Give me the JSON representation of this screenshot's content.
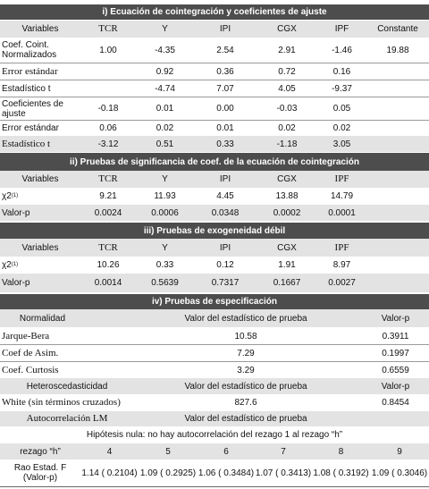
{
  "sec1": {
    "title": "i) Ecuación de cointegración y coeficientes de ajuste",
    "headers": [
      "Variables",
      "TCR",
      "Y",
      "IPI",
      "CGX",
      "IPF",
      "Constante"
    ],
    "rows": [
      {
        "label": "Coef. Coint. Normalizados",
        "vals": [
          "1.00",
          "-4.35",
          "2.54",
          "2.91",
          "-1.46",
          "19.88"
        ]
      },
      {
        "label": "Error estándar",
        "vals": [
          "",
          "0.92",
          "0.36",
          "0.72",
          "0.16",
          ""
        ]
      },
      {
        "label": "Estadístico t",
        "vals": [
          "",
          "-4.74",
          "7.07",
          "4.05",
          "-9.37",
          ""
        ]
      },
      {
        "label": "Coeficientes de ajuste",
        "vals": [
          "-0.18",
          "0.01",
          "0.00",
          "-0.03",
          "0.05",
          ""
        ]
      },
      {
        "label": "Error estándar",
        "vals": [
          "0.06",
          "0.02",
          "0.01",
          "0.02",
          "0.02",
          ""
        ]
      },
      {
        "label": "Estadístico t",
        "vals": [
          "-3.12",
          "0.51",
          "0.33",
          "-1.18",
          "3.05",
          ""
        ]
      }
    ]
  },
  "sec2": {
    "title": "ii) Pruebas de significancia de coef. de la ecuación de cointegración",
    "headers": [
      "Variables",
      "TCR",
      "Y",
      "IPI",
      "CGX",
      "IPF"
    ],
    "chi_label": "χ2",
    "chi_sub": "(1)",
    "chi_vals": [
      "9.21",
      "11.93",
      "4.45",
      "13.88",
      "14.79"
    ],
    "p_label": "Valor-p",
    "p_vals": [
      "0.0024",
      "0.0006",
      "0.0348",
      "0.0002",
      "0.0001"
    ]
  },
  "sec3": {
    "title": "iii) Pruebas de exogeneidad débil",
    "headers": [
      "Variables",
      "TCR",
      "Y",
      "IPI",
      "CGX",
      "IPF"
    ],
    "chi_label": "χ2",
    "chi_sub": "(1)",
    "chi_vals": [
      "10.26",
      "0.33",
      "0.12",
      "1.91",
      "8.97"
    ],
    "p_label": "Valor-p",
    "p_vals": [
      "0.0014",
      "0.5639",
      "0.7317",
      "0.1667",
      "0.0027"
    ]
  },
  "sec4": {
    "title": "iv) Pruebas de especificación",
    "norm_header": [
      "Normalidad",
      "Valor del estadístico de prueba",
      "Valor-p"
    ],
    "norm_rows": [
      {
        "label": "Jarque-Bera",
        "stat": "10.58",
        "p": "0.3911"
      },
      {
        "label": "Coef de Asim.",
        "stat": "7.29",
        "p": "0.1997"
      },
      {
        "label": "Coef. Curtosis",
        "stat": "3.29",
        "p": "0.6559"
      }
    ],
    "het_header": [
      "Heteroscedasticidad",
      "Valor del estadístico de prueba",
      "Valor-p"
    ],
    "het_row": {
      "label": "White (sin términos cruzados)",
      "stat": "827.6",
      "p": "0.8454"
    },
    "auto_header": [
      "Autocorrelación LM",
      "Valor del estadístico de prueba"
    ],
    "auto_hypothesis": "Hipótesis nula: no hay autocorrelación del rezago 1 al rezago “h”",
    "lag_label": "rezago “h”",
    "lags": [
      "4",
      "5",
      "6",
      "7",
      "8",
      "9"
    ],
    "rao_label": "Rao Estad. F (Valor-p)",
    "rao_vals": [
      "1.14 ( 0.2104)",
      "1.09 ( 0.2925)",
      "1.06 ( 0.3484)",
      "1.07 ( 0.3413)",
      "1.08 ( 0.3192)",
      "1.09 ( 0.3046)"
    ]
  }
}
